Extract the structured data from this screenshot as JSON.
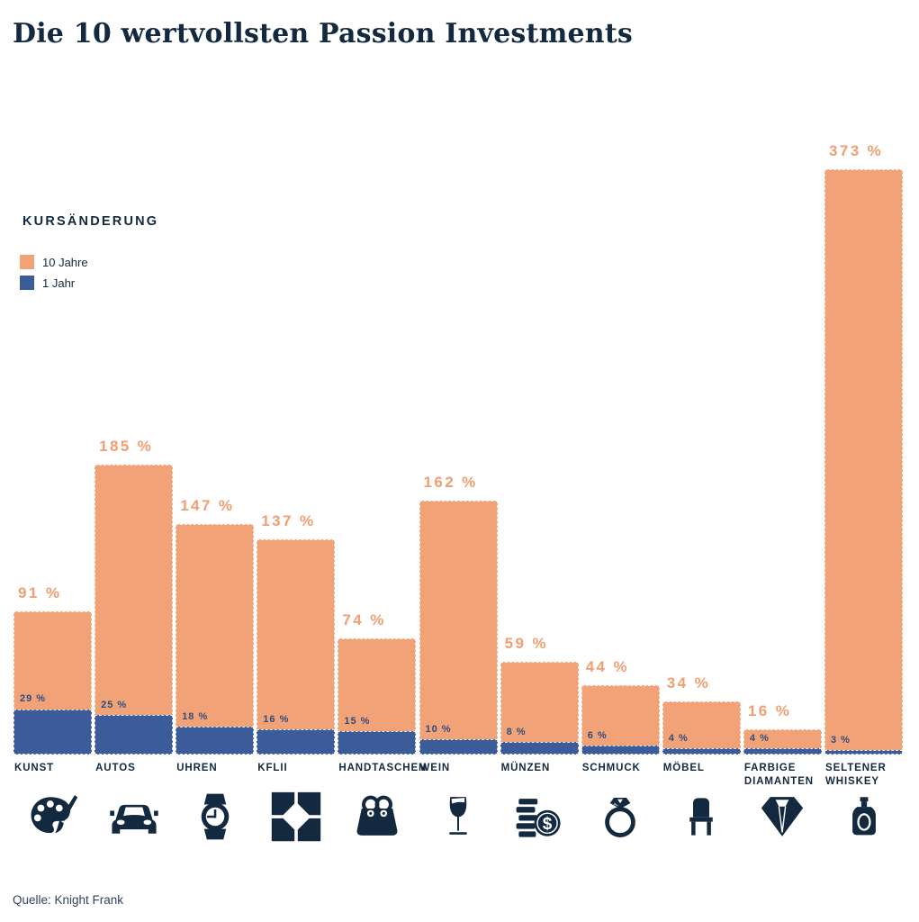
{
  "title": "Die 10 wertvollsten Passion Investments",
  "legend": {
    "heading": "KURSÄNDERUNG",
    "items": [
      {
        "label": "10 Jahre",
        "color": "#F2A277"
      },
      {
        "label": "1 Jahr",
        "color": "#3B5C99"
      }
    ]
  },
  "source": "Quelle: Knight Frank",
  "colors": {
    "orange_bar": "#F2A277",
    "orange_label": "#F19E74",
    "blue_bar": "#3B5C99",
    "blue_label": "#2E4D80",
    "navy_text": "#13293F",
    "icon_navy": "#13293F"
  },
  "chart_data": {
    "type": "bar",
    "title": "Die 10 wertvollsten Passion Investments",
    "categories": [
      "KUNST",
      "AUTOS",
      "UHREN",
      "KFLII",
      "HANDTASCHEN",
      "WEIN",
      "MÜNZEN",
      "SCHMUCK",
      "MÖBEL",
      "FARBIGE DIAMANTEN",
      "SELTENER WHISKEY"
    ],
    "icons": [
      "palette",
      "car",
      "watch",
      "kflii-logo",
      "handbag",
      "wine-glass",
      "coins-dollar",
      "ring",
      "chair",
      "diamond",
      "whiskey-bottle"
    ],
    "series": [
      {
        "name": "10 Jahre",
        "color": "#F2A277",
        "values": [
          91,
          185,
          147,
          137,
          74,
          162,
          59,
          44,
          34,
          16,
          373
        ]
      },
      {
        "name": "1 Jahr",
        "color": "#3B5C99",
        "values": [
          29,
          25,
          18,
          16,
          15,
          10,
          8,
          6,
          4,
          4,
          3
        ]
      }
    ],
    "unit": "%",
    "value_suffix": " %",
    "ylim": [
      0,
      380
    ],
    "grid": false,
    "legend_position": "upper-left",
    "legend_heading": "KURSÄNDERUNG",
    "value_labels": true
  }
}
